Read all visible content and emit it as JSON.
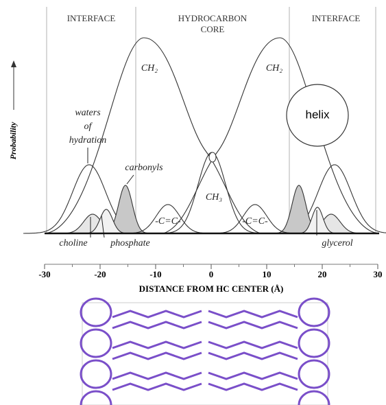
{
  "regions": {
    "left": "INTERFACE",
    "core": [
      "HYDROCARBON",
      "CORE"
    ],
    "right": "INTERFACE"
  },
  "y_label": "Probability",
  "labels": {
    "ch2_left": "CH₂",
    "ch2_right": "CH₂",
    "ch3": "CH₃",
    "cc_left": "-C=C-",
    "cc_right": "-C=C-",
    "waters": [
      "waters",
      "of",
      "hydration"
    ],
    "carbonyls": "carbonyls",
    "helix": "helix",
    "choline": "choline",
    "phosphate": "phosphate",
    "glycerol": "glycerol"
  },
  "x_axis": {
    "title": "DISTANCE FROM HC CENTER (Å)",
    "xlim": [
      -30,
      30
    ],
    "xticks": [
      -30,
      -20,
      -10,
      0,
      10,
      20,
      30
    ]
  }
}
